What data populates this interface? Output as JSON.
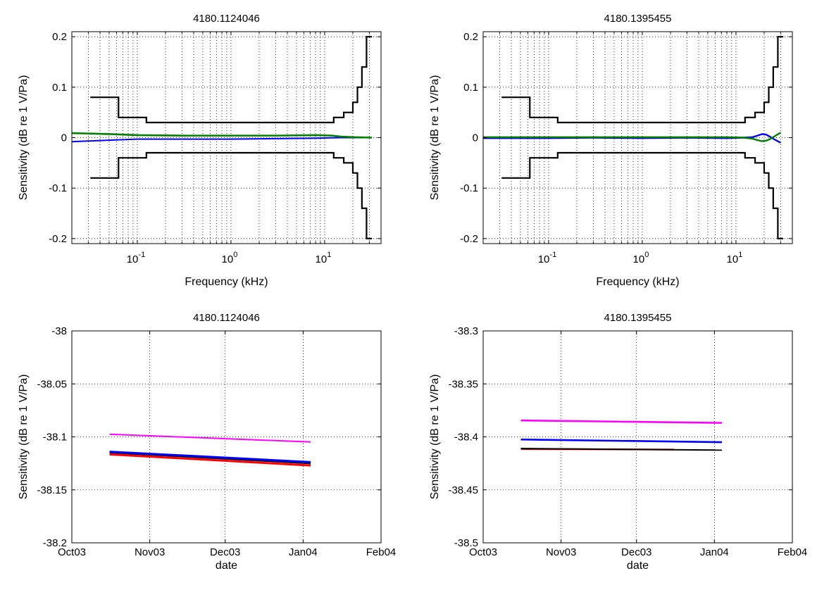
{
  "figure": {
    "ylabel": "Sensitivity (dB re 1 V/Pa)"
  },
  "chart_data": [
    {
      "type": "line",
      "title": "4180.1124046",
      "xlabel": "Frequency (kHz)",
      "ylabel": "Sensitivity (dB re 1 V/Pa)",
      "xscale": "log",
      "xlim": [
        0.02,
        40
      ],
      "ylim": [
        -0.21,
        0.21
      ],
      "grid": true,
      "xticks": [
        {
          "base": "10",
          "exp": "-1",
          "value": 0.1
        },
        {
          "base": "10",
          "exp": "0",
          "value": 1
        },
        {
          "base": "10",
          "exp": "1",
          "value": 10
        }
      ],
      "yticks": [
        {
          "label": "0.2",
          "value": 0.2
        },
        {
          "label": "0.1",
          "value": 0.1
        },
        {
          "label": "0",
          "value": 0
        },
        {
          "label": "-0.1",
          "value": -0.1
        },
        {
          "label": "-0.2",
          "value": -0.2
        }
      ],
      "series": [
        {
          "color": "#000000",
          "width": 2.2,
          "step": true,
          "points": [
            [
              0.0315,
              0.08
            ],
            [
              0.063,
              0.08
            ],
            [
              0.063,
              0.04
            ],
            [
              0.125,
              0.04
            ],
            [
              0.125,
              0.03
            ],
            [
              12.5,
              0.03
            ],
            [
              12.5,
              0.04
            ],
            [
              16,
              0.04
            ],
            [
              16,
              0.05
            ],
            [
              20,
              0.05
            ],
            [
              20,
              0.07
            ],
            [
              22.4,
              0.07
            ],
            [
              22.4,
              0.1
            ],
            [
              25,
              0.1
            ],
            [
              25,
              0.14
            ],
            [
              28,
              0.14
            ],
            [
              28,
              0.2
            ],
            [
              32,
              0.2
            ]
          ]
        },
        {
          "color": "#000000",
          "width": 2.2,
          "step": true,
          "points": [
            [
              0.0315,
              -0.08
            ],
            [
              0.063,
              -0.08
            ],
            [
              0.063,
              -0.04
            ],
            [
              0.125,
              -0.04
            ],
            [
              0.125,
              -0.03
            ],
            [
              12.5,
              -0.03
            ],
            [
              12.5,
              -0.04
            ],
            [
              16,
              -0.04
            ],
            [
              16,
              -0.05
            ],
            [
              20,
              -0.05
            ],
            [
              20,
              -0.07
            ],
            [
              22.4,
              -0.07
            ],
            [
              22.4,
              -0.1
            ],
            [
              25,
              -0.1
            ],
            [
              25,
              -0.14
            ],
            [
              28,
              -0.14
            ],
            [
              28,
              -0.2
            ],
            [
              32,
              -0.2
            ]
          ]
        },
        {
          "color": "#0000ff",
          "width": 2,
          "points": [
            [
              0.02,
              -0.008
            ],
            [
              0.05,
              -0.005
            ],
            [
              0.1,
              -0.003
            ],
            [
              0.3,
              -0.003
            ],
            [
              1,
              -0.003
            ],
            [
              3,
              -0.002
            ],
            [
              8,
              -0.001
            ],
            [
              15,
              0.0
            ],
            [
              20,
              0.0
            ],
            [
              32,
              0.0
            ]
          ]
        },
        {
          "color": "#008000",
          "width": 2.6,
          "points": [
            [
              0.02,
              0.009
            ],
            [
              0.05,
              0.007
            ],
            [
              0.1,
              0.005
            ],
            [
              0.3,
              0.004
            ],
            [
              1,
              0.004
            ],
            [
              3,
              0.004
            ],
            [
              8,
              0.005
            ],
            [
              12,
              0.004
            ],
            [
              15,
              0.002
            ],
            [
              20,
              0.001
            ],
            [
              32,
              0.0
            ]
          ]
        }
      ]
    },
    {
      "type": "line",
      "title": "4180.1395455",
      "xlabel": "Frequency (kHz)",
      "ylabel": "Sensitivity (dB re 1 V/Pa)",
      "xscale": "log",
      "xlim": [
        0.02,
        40
      ],
      "ylim": [
        -0.21,
        0.21
      ],
      "grid": true,
      "xticks": [
        {
          "base": "10",
          "exp": "-1",
          "value": 0.1
        },
        {
          "base": "10",
          "exp": "0",
          "value": 1
        },
        {
          "base": "10",
          "exp": "1",
          "value": 10
        }
      ],
      "yticks": [
        {
          "label": "0.2",
          "value": 0.2
        },
        {
          "label": "0.1",
          "value": 0.1
        },
        {
          "label": "0",
          "value": 0
        },
        {
          "label": "-0.1",
          "value": -0.1
        },
        {
          "label": "-0.2",
          "value": -0.2
        }
      ],
      "series": [
        {
          "color": "#000000",
          "width": 2.2,
          "step": true,
          "points": [
            [
              0.0315,
              0.08
            ],
            [
              0.063,
              0.08
            ],
            [
              0.063,
              0.04
            ],
            [
              0.125,
              0.04
            ],
            [
              0.125,
              0.03
            ],
            [
              12.5,
              0.03
            ],
            [
              12.5,
              0.04
            ],
            [
              16,
              0.04
            ],
            [
              16,
              0.05
            ],
            [
              20,
              0.05
            ],
            [
              20,
              0.07
            ],
            [
              22.4,
              0.07
            ],
            [
              22.4,
              0.1
            ],
            [
              25,
              0.1
            ],
            [
              25,
              0.14
            ],
            [
              28,
              0.14
            ],
            [
              28,
              0.2
            ],
            [
              32,
              0.2
            ]
          ]
        },
        {
          "color": "#000000",
          "width": 2.2,
          "step": true,
          "points": [
            [
              0.0315,
              -0.08
            ],
            [
              0.063,
              -0.08
            ],
            [
              0.063,
              -0.04
            ],
            [
              0.125,
              -0.04
            ],
            [
              0.125,
              -0.03
            ],
            [
              12.5,
              -0.03
            ],
            [
              12.5,
              -0.04
            ],
            [
              16,
              -0.04
            ],
            [
              16,
              -0.05
            ],
            [
              20,
              -0.05
            ],
            [
              20,
              -0.07
            ],
            [
              22.4,
              -0.07
            ],
            [
              22.4,
              -0.1
            ],
            [
              25,
              -0.1
            ],
            [
              25,
              -0.14
            ],
            [
              28,
              -0.14
            ],
            [
              28,
              -0.2
            ],
            [
              32,
              -0.2
            ]
          ]
        },
        {
          "color": "#0000ff",
          "width": 2.4,
          "points": [
            [
              0.02,
              -0.001
            ],
            [
              0.1,
              -0.001
            ],
            [
              0.3,
              0.0
            ],
            [
              1,
              -0.001
            ],
            [
              3,
              0.0
            ],
            [
              8,
              -0.001
            ],
            [
              12,
              0.0
            ],
            [
              15,
              0.001
            ],
            [
              17,
              0.004
            ],
            [
              19,
              0.007
            ],
            [
              21,
              0.006
            ],
            [
              23,
              0.002
            ],
            [
              26,
              -0.004
            ],
            [
              30,
              -0.01
            ]
          ]
        },
        {
          "color": "#008000",
          "width": 2.4,
          "points": [
            [
              0.02,
              0.001
            ],
            [
              0.1,
              0.001
            ],
            [
              0.3,
              0.001
            ],
            [
              1,
              0.001
            ],
            [
              3,
              0.001
            ],
            [
              8,
              0.001
            ],
            [
              12,
              0.0
            ],
            [
              15,
              -0.002
            ],
            [
              17,
              -0.005
            ],
            [
              19,
              -0.007
            ],
            [
              21,
              -0.006
            ],
            [
              23,
              -0.003
            ],
            [
              26,
              0.003
            ],
            [
              30,
              0.01
            ]
          ]
        }
      ]
    },
    {
      "type": "line",
      "title": "4180.1124046",
      "xlabel": "date",
      "ylabel": "Sensitivity (dB re 1 V/Pa)",
      "xlim": [
        "2003-10-01",
        "2004-02-01"
      ],
      "ylim": [
        -38.2,
        -38
      ],
      "grid": true,
      "xticks": [
        {
          "label": "Oct03",
          "value": "2003-10-01"
        },
        {
          "label": "Nov03",
          "value": "2003-11-01"
        },
        {
          "label": "Dec03",
          "value": "2003-12-01"
        },
        {
          "label": "Jan04",
          "value": "2004-01-01"
        },
        {
          "label": "Feb04",
          "value": "2004-02-01"
        }
      ],
      "yticks": [
        {
          "label": "-38",
          "value": -38
        },
        {
          "label": "-38.05",
          "value": -38.05
        },
        {
          "label": "-38.1",
          "value": -38.1
        },
        {
          "label": "-38.15",
          "value": -38.15
        },
        {
          "label": "-38.2",
          "value": -38.2
        }
      ],
      "series": [
        {
          "color": "#ff00ff",
          "width": 2,
          "points": [
            [
              "2003-10-16",
              -38.0975
            ],
            [
              "2004-01-04",
              -38.1048
            ]
          ]
        },
        {
          "color": "#ff0000",
          "width": 3,
          "points": [
            [
              "2003-10-16",
              -38.1165
            ],
            [
              "2004-01-04",
              -38.127
            ]
          ]
        },
        {
          "color": "#000000",
          "width": 3,
          "points": [
            [
              "2003-10-16",
              -38.1145
            ],
            [
              "2004-01-04",
              -38.1248
            ]
          ]
        },
        {
          "color": "#0000ff",
          "width": 3,
          "points": [
            [
              "2003-10-16",
              -38.114
            ],
            [
              "2004-01-04",
              -38.1238
            ]
          ]
        }
      ]
    },
    {
      "type": "line",
      "title": "4180.1395455",
      "xlabel": "date",
      "ylabel": "Sensitivity (dB re 1 V/Pa)",
      "xlim": [
        "2003-10-01",
        "2004-02-01"
      ],
      "ylim": [
        -38.5,
        -38.3
      ],
      "grid": true,
      "xticks": [
        {
          "label": "Oct03",
          "value": "2003-10-01"
        },
        {
          "label": "Nov03",
          "value": "2003-11-01"
        },
        {
          "label": "Dec03",
          "value": "2003-12-01"
        },
        {
          "label": "Jan04",
          "value": "2004-01-01"
        },
        {
          "label": "Feb04",
          "value": "2004-02-01"
        }
      ],
      "yticks": [
        {
          "label": "-38.3",
          "value": -38.3
        },
        {
          "label": "-38.35",
          "value": -38.35
        },
        {
          "label": "-38.4",
          "value": -38.4
        },
        {
          "label": "-38.45",
          "value": -38.45
        },
        {
          "label": "-38.5",
          "value": -38.5
        }
      ],
      "series": [
        {
          "color": "#ff00ff",
          "width": 2.6,
          "points": [
            [
              "2003-10-16",
              -38.3845
            ],
            [
              "2004-01-04",
              -38.3868
            ]
          ]
        },
        {
          "color": "#0000ff",
          "width": 2.6,
          "points": [
            [
              "2003-10-16",
              -38.4025
            ],
            [
              "2004-01-04",
              -38.405
            ]
          ]
        },
        {
          "color": "#ff0000",
          "width": 2.4,
          "points": [
            [
              "2003-10-16",
              -38.4115
            ],
            [
              "2003-12-16",
              -38.412
            ]
          ]
        },
        {
          "color": "#000000",
          "width": 2,
          "points": [
            [
              "2003-10-16",
              -38.411
            ],
            [
              "2004-01-04",
              -38.4125
            ]
          ]
        }
      ]
    }
  ]
}
